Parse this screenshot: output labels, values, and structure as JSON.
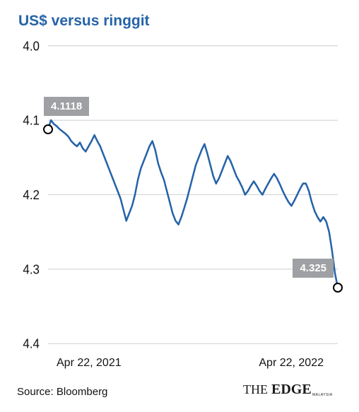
{
  "chart": {
    "type": "line",
    "title": "US$ versus ringgit",
    "title_color": "#2563a8",
    "title_fontsize": 21,
    "background_color": "#ffffff",
    "line_color": "#2563a8",
    "line_width": 2.5,
    "grid_color": "#d0d2d4",
    "text_color": "#111111",
    "y_axis": {
      "lim": [
        4.0,
        4.4
      ],
      "ticks": [
        4.0,
        4.1,
        4.2,
        4.3,
        4.4
      ],
      "inverted": true,
      "fontsize": 17
    },
    "x_axis": {
      "labels": [
        "Apr 22, 2021",
        "Apr 22, 2022"
      ],
      "fontsize": 16
    },
    "callouts": [
      {
        "label": "4.1118",
        "bg": "#9ea0a3",
        "fg": "#ffffff",
        "pos": "start"
      },
      {
        "label": "4.325",
        "bg": "#9ea0a3",
        "fg": "#ffffff",
        "pos": "end"
      }
    ],
    "marker": {
      "stroke": "#000000",
      "fill": "#ffffff",
      "stroke_width": 2.5,
      "radius": 7
    },
    "series": {
      "x": [
        0,
        1,
        2,
        3,
        4,
        5,
        6,
        7,
        8,
        9,
        10,
        11,
        12,
        13,
        14,
        15,
        16,
        17,
        18,
        19,
        20,
        21,
        22,
        23,
        24,
        25,
        26,
        27,
        28,
        29,
        30,
        31,
        32,
        33,
        34,
        35,
        36,
        37,
        38,
        39,
        40,
        41,
        42,
        43,
        44,
        45,
        46,
        47,
        48,
        49,
        50,
        51,
        52,
        53,
        54,
        55,
        56,
        57,
        58,
        59,
        60,
        61,
        62,
        63,
        64,
        65,
        66,
        67,
        68,
        69,
        70,
        71,
        72,
        73,
        74,
        75,
        76,
        77,
        78,
        79,
        80,
        81,
        82,
        83,
        84,
        85,
        86,
        87,
        88,
        89,
        90,
        91,
        92,
        93,
        94,
        95,
        96,
        97,
        98,
        99,
        100
      ],
      "y": [
        4.1118,
        4.1,
        4.105,
        4.108,
        4.112,
        4.115,
        4.118,
        4.122,
        4.128,
        4.132,
        4.135,
        4.13,
        4.138,
        4.142,
        4.135,
        4.128,
        4.12,
        4.128,
        4.135,
        4.145,
        4.155,
        4.165,
        4.175,
        4.185,
        4.195,
        4.205,
        4.22,
        4.235,
        4.225,
        4.215,
        4.2,
        4.18,
        4.165,
        4.155,
        4.145,
        4.135,
        4.128,
        4.14,
        4.158,
        4.17,
        4.18,
        4.195,
        4.21,
        4.225,
        4.235,
        4.24,
        4.23,
        4.218,
        4.205,
        4.19,
        4.175,
        4.16,
        4.15,
        4.14,
        4.132,
        4.145,
        4.16,
        4.175,
        4.185,
        4.178,
        4.168,
        4.158,
        4.148,
        4.155,
        4.165,
        4.175,
        4.182,
        4.19,
        4.2,
        4.195,
        4.188,
        4.182,
        4.188,
        4.195,
        4.2,
        4.192,
        4.185,
        4.178,
        4.172,
        4.178,
        4.186,
        4.195,
        4.203,
        4.21,
        4.215,
        4.208,
        4.2,
        4.192,
        4.185,
        4.185,
        4.195,
        4.21,
        4.222,
        4.23,
        4.236,
        4.23,
        4.236,
        4.25,
        4.275,
        4.305,
        4.325
      ]
    }
  },
  "source": "Source: Bloomberg",
  "brand": "THE EDGE",
  "brand_sub": "MALAYSIA"
}
